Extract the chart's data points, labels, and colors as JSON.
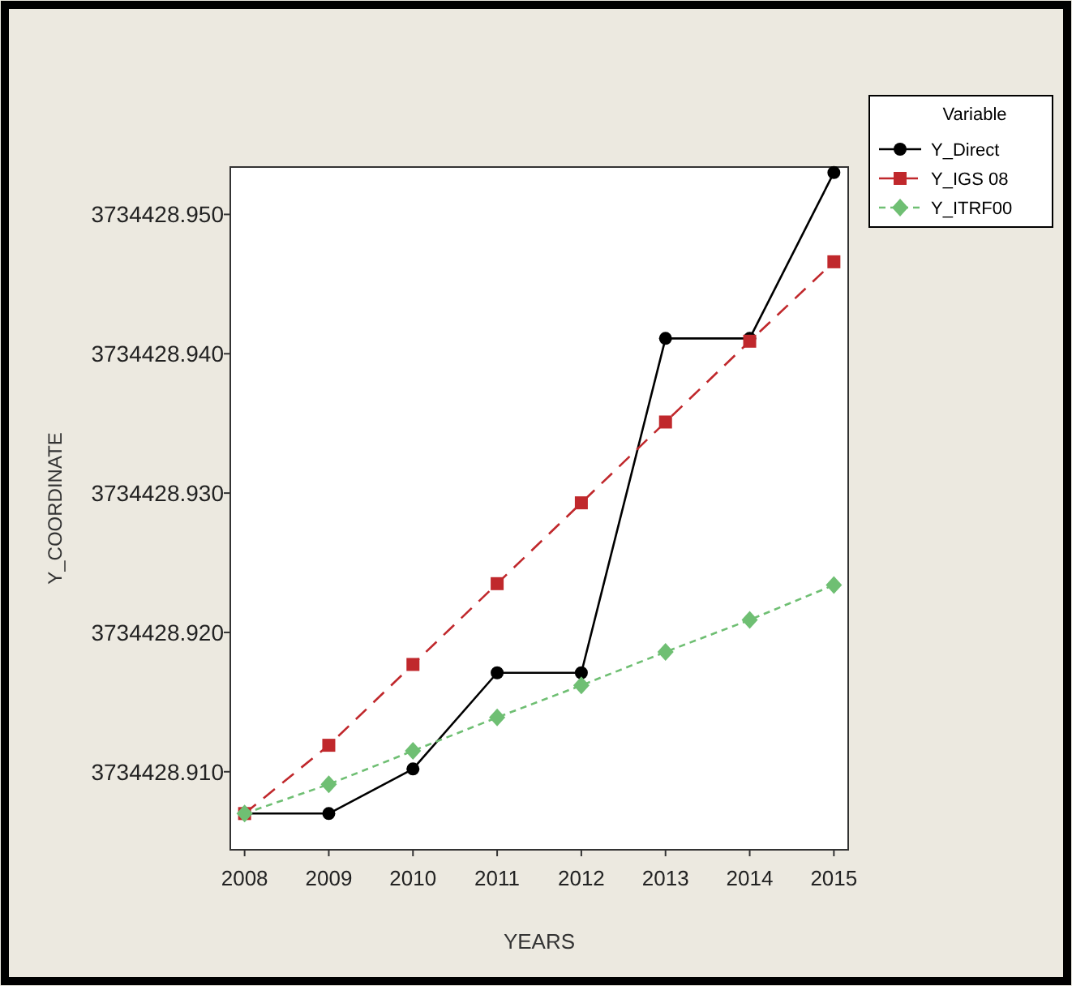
{
  "chart_data": {
    "type": "line",
    "xlabel": "YEARS",
    "ylabel": "Y_COORDINATE",
    "legend_title": "Variable",
    "legend": "top right",
    "grid": false,
    "x": [
      2008,
      2009,
      2010,
      2011,
      2012,
      2013,
      2014,
      2015
    ],
    "xlim": [
      2007.83,
      2015.17
    ],
    "xticks": [
      2008,
      2009,
      2010,
      2011,
      2012,
      2013,
      2014,
      2015
    ],
    "ylim": [
      3734428.9044,
      3734428.9534
    ],
    "yticks": [
      {
        "value": 3734428.91,
        "label": "3734428.910"
      },
      {
        "value": 3734428.92,
        "label": "3734428.920"
      },
      {
        "value": 3734428.93,
        "label": "3734428.930"
      },
      {
        "value": 3734428.94,
        "label": "3734428.940"
      },
      {
        "value": 3734428.95,
        "label": "3734428.950"
      }
    ],
    "series": [
      {
        "name": "Y_Direct",
        "color": "#000000",
        "marker": "circle",
        "line_style": "solid",
        "values": [
          3734428.907,
          3734428.907,
          3734428.9102,
          3734428.9171,
          3734428.9171,
          3734428.9411,
          3734428.9411,
          3734428.953
        ]
      },
      {
        "name": "Y_IGS 08",
        "color": "#c0282c",
        "marker": "square",
        "line_style": "dashed",
        "values": [
          3734428.907,
          3734428.9119,
          3734428.9177,
          3734428.9235,
          3734428.9293,
          3734428.9351,
          3734428.9409,
          3734428.9466
        ]
      },
      {
        "name": "Y_ITRF00",
        "color": "#6fbf73",
        "marker": "diamond",
        "line_style": "dotted",
        "values": [
          3734428.907,
          3734428.9091,
          3734428.9115,
          3734428.9139,
          3734428.9162,
          3734428.9186,
          3734428.9209,
          3734428.9234
        ]
      }
    ]
  }
}
